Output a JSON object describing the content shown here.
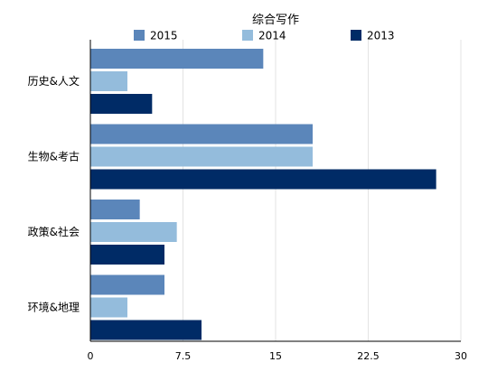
{
  "chart_data": {
    "type": "bar",
    "orientation": "horizontal",
    "title": "综合写作",
    "categories": [
      "历史&人文",
      "生物&考古",
      "政策&社会",
      "环境&地理"
    ],
    "series": [
      {
        "name": "2015",
        "color": "#5b86ba",
        "values": [
          14,
          18,
          4,
          6
        ]
      },
      {
        "name": "2014",
        "color": "#94bcdc",
        "values": [
          3,
          18,
          7,
          3
        ]
      },
      {
        "name": "2013",
        "color": "#002b66",
        "values": [
          5,
          28,
          6,
          9
        ]
      }
    ],
    "xlim": [
      0,
      30
    ],
    "xticks": [
      "0",
      "7.5",
      "15",
      "22.5",
      "30"
    ],
    "xtick_values": [
      0,
      7.5,
      15,
      22.5,
      30
    ],
    "grid": true,
    "legend_position": "top"
  }
}
